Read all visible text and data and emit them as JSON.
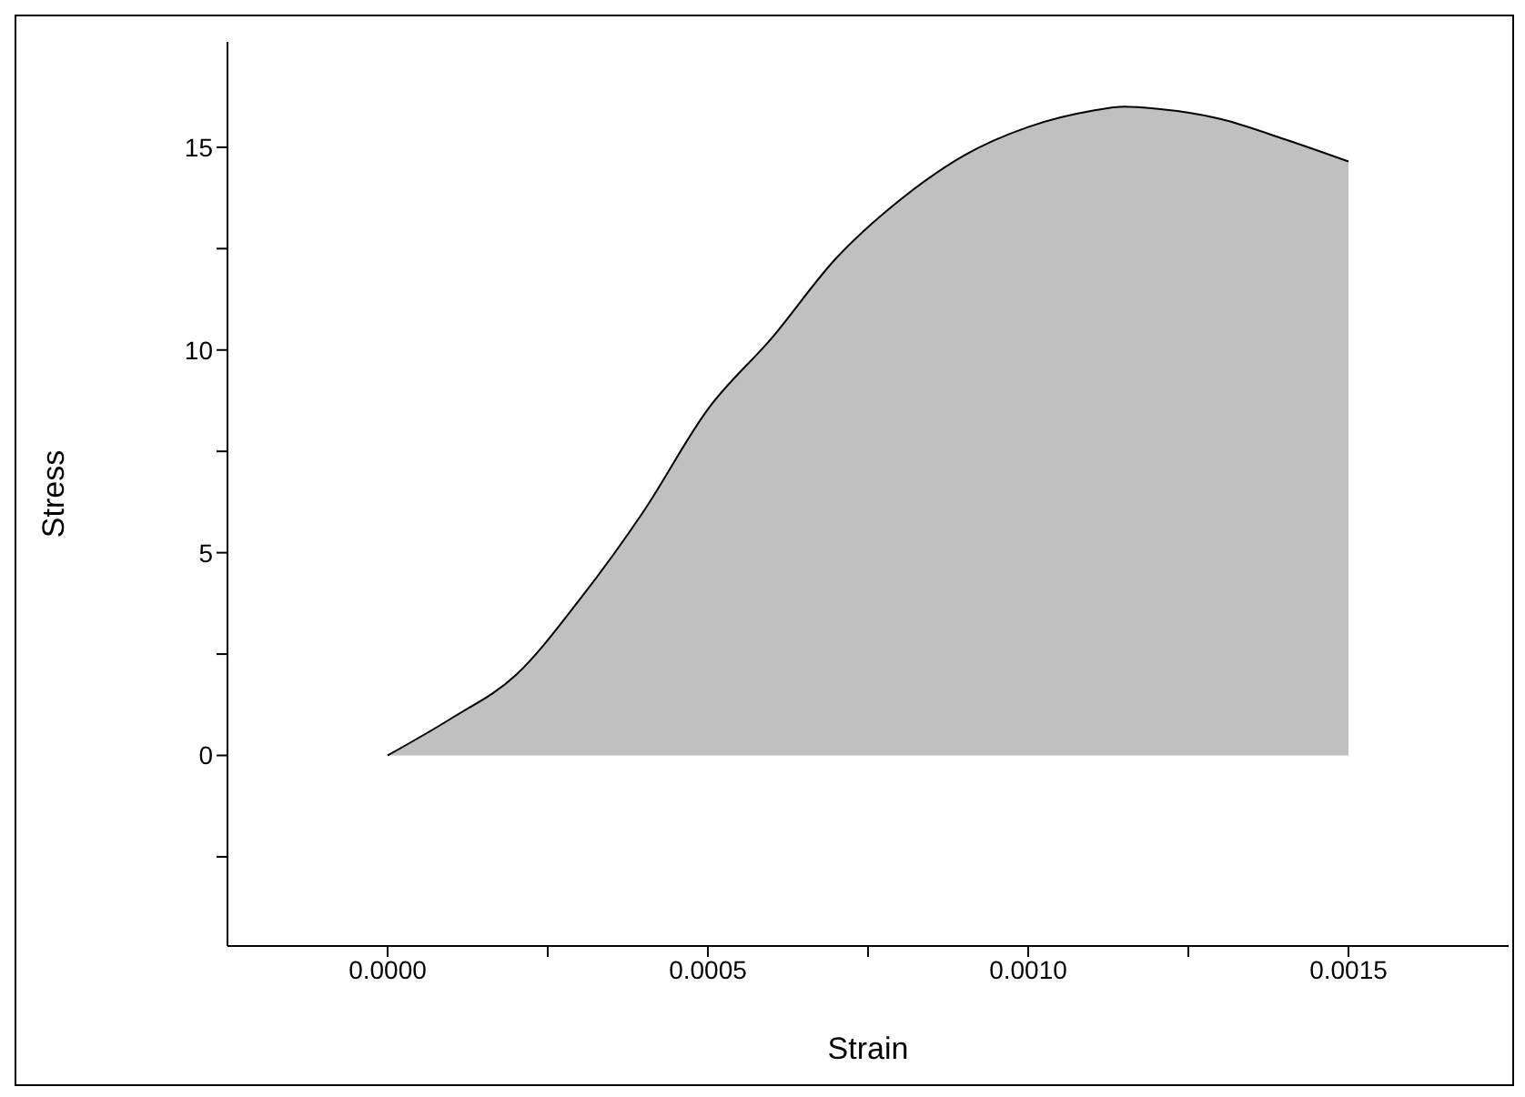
{
  "chart_data": {
    "type": "area",
    "xlabel": "Strain",
    "ylabel": "Stress",
    "x": [
      0,
      0.0001,
      0.0002,
      0.0003,
      0.0004,
      0.0005,
      0.0006,
      0.0007,
      0.0008,
      0.0009,
      0.001,
      0.0011,
      0.00115,
      0.0012,
      0.0013,
      0.0014,
      0.0015
    ],
    "series": [
      {
        "color": "#c0c0c0",
        "values": [
          0,
          0.92,
          1.98,
          3.85,
          6.03,
          8.54,
          10.3,
          12.26,
          13.7,
          14.8,
          15.5,
          15.9,
          16.0,
          15.95,
          15.7,
          15.2,
          14.65
        ]
      }
    ],
    "xlim": [
      -0.00025,
      0.00175
    ],
    "xticks": [
      {
        "value": 0,
        "label": "0.0000"
      },
      {
        "value": 0.00025,
        "label": null
      },
      {
        "value": 0.0005,
        "label": "0.0005"
      },
      {
        "value": 0.00075,
        "label": null
      },
      {
        "value": 0.001,
        "label": "0.0010"
      },
      {
        "value": 0.00125,
        "label": null
      },
      {
        "value": 0.0015,
        "label": "0.0015"
      }
    ],
    "ylim": [
      -4.7,
      17.6
    ],
    "yticks": [
      {
        "value": -2.5,
        "label": null
      },
      0,
      {
        "value": 2.5,
        "label": null
      },
      5,
      {
        "value": 7.5,
        "label": null
      },
      10,
      {
        "value": 12.5,
        "label": null
      },
      15
    ]
  }
}
